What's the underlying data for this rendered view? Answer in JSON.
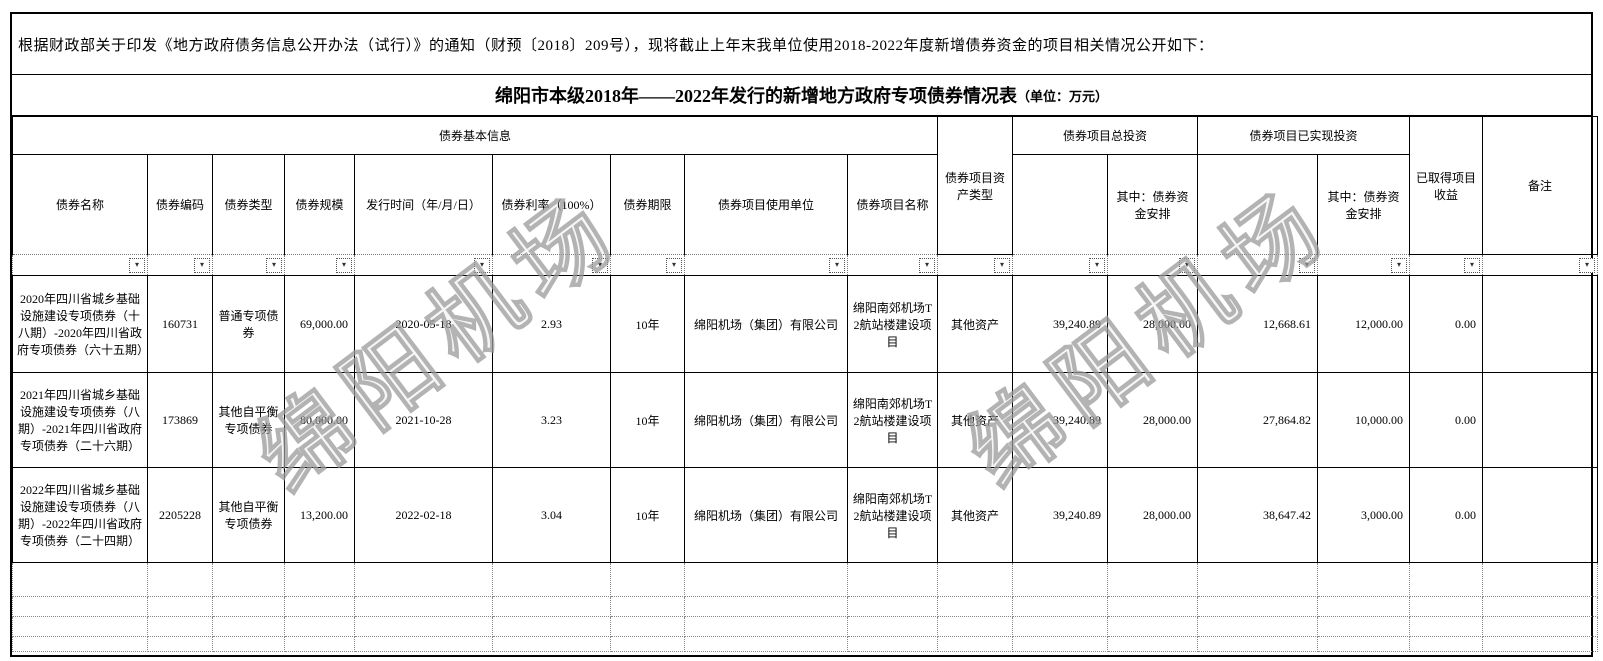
{
  "document": {
    "intro": "根据财政部关于印发《地方政府债务信息公开办法（试行）》的通知（财预〔2018〕209号），现将截止上年末我单位使用2018-2022年度新增债券资金的项目相关情况公开如下：",
    "title": "绵阳市本级2018年——2022年发行的新增地方政府专项债券情况表",
    "title_unit": "（单位：万元）",
    "watermark": "绵阳机场"
  },
  "table": {
    "filter_icon": "▾",
    "header": {
      "basic_info_group": "债券基本信息",
      "bond_name": "债券名称",
      "bond_code": "债券编码",
      "bond_type": "债券类型",
      "bond_scale": "债券规模",
      "issue_date": "发行时间（年/月/日）",
      "bond_rate": "债券利率（100%）",
      "bond_term": "债券期限",
      "using_unit": "债券项目使用单位",
      "project_name": "债券项目名称",
      "asset_type": "债券项目资产类型",
      "total_investment_group": "债券项目总投资",
      "total_sub": "其中：债券资金安排",
      "realized_investment_group": "债券项目已实现投资",
      "realized_sub": "其中：债券资金安排",
      "income": "已取得项目收益",
      "remark": "备注"
    },
    "rows": [
      [
        "2020年四川省城乡基础设施建设专项债券（十八期）-2020年四川省政府专项债券（六十五期）",
        "160731",
        "普通专项债券",
        "69,000.00",
        "2020-05-18",
        "2.93",
        "10年",
        "绵阳机场（集团）有限公司",
        "绵阳南郊机场T2航站楼建设项目",
        "其他资产",
        "39,240.89",
        "28,000.00",
        "12,668.61",
        "12,000.00",
        "0.00",
        ""
      ],
      [
        "2021年四川省城乡基础设施建设专项债券（八期）-2021年四川省政府专项债券（二十六期）",
        "173869",
        "其他自平衡专项债券",
        "80,000.00",
        "2021-10-28",
        "3.23",
        "10年",
        "绵阳机场（集团）有限公司",
        "绵阳南郊机场T2航站楼建设项目",
        "其他资产",
        "39,240.89",
        "28,000.00",
        "27,864.82",
        "10,000.00",
        "0.00",
        ""
      ],
      [
        "2022年四川省城乡基础设施建设专项债券（八期）-2022年四川省政府专项债券（二十四期）",
        "2205228",
        "其他自平衡专项债券",
        "13,200.00",
        "2022-02-18",
        "3.04",
        "10年",
        "绵阳机场（集团）有限公司",
        "绵阳南郊机场T2航站楼建设项目",
        "其他资产",
        "39,240.89",
        "28,000.00",
        "38,647.42",
        "3,000.00",
        "0.00",
        ""
      ]
    ]
  }
}
